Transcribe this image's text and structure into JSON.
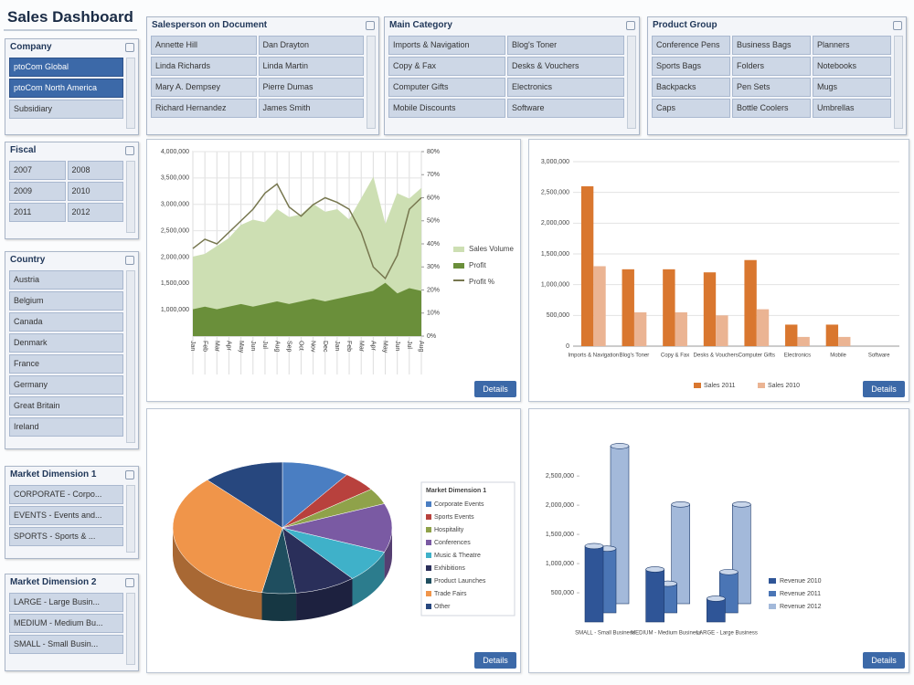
{
  "header": {
    "title": "Sales Dashboard"
  },
  "slicers": [
    {
      "title": "Company",
      "items": [
        "ptoCom Global",
        "ptoCom North America",
        "Subsidiary"
      ],
      "selected": [
        0,
        1
      ]
    },
    {
      "title": "Fiscal",
      "items": [
        "2007",
        "2008",
        "2009",
        "2010",
        "2011",
        "2012"
      ],
      "selected": []
    },
    {
      "title": "Country",
      "items": [
        "Austria",
        "Belgium",
        "Canada",
        "Denmark",
        "France",
        "Germany",
        "Great Britain",
        "Ireland"
      ],
      "selected": []
    },
    {
      "title": "Market Dimension 1",
      "items": [
        "CORPORATE - Corpo...",
        "EVENTS - Events and...",
        "SPORTS - Sports & ..."
      ],
      "selected": []
    },
    {
      "title": "Market Dimension 2",
      "items": [
        "LARGE - Large Busin...",
        "MEDIUM - Medium Bu...",
        "SMALL - Small Busin..."
      ],
      "selected": []
    },
    {
      "title": "Salesperson on Document",
      "items": [
        "Annette Hill",
        "Dan Drayton",
        "Linda Richards",
        "Linda Martin",
        "Mary A. Dempsey",
        "Pierre Dumas",
        "Richard Hernandez",
        "James Smith"
      ],
      "selected": []
    },
    {
      "title": "Main Category",
      "items": [
        "Imports & Navigation",
        "Blog's Toner",
        "Copy & Fax",
        "Desks & Vouchers",
        "Computer Gifts",
        "Electronics",
        "Mobile Discounts",
        "Software"
      ],
      "selected": []
    },
    {
      "title": "Product Group",
      "items": [
        "Conference Pens",
        "Business Bags",
        "Planners",
        "Sports Bags",
        "Folders",
        "Notebooks",
        "Backpacks",
        "Pen Sets",
        "Mugs",
        "Caps",
        "Bottle Coolers",
        "Umbrellas"
      ],
      "selected": []
    }
  ],
  "charts": [
    {
      "type": "area",
      "categories": [
        "Jan",
        "Feb",
        "Mar",
        "Apr",
        "May",
        "Jun",
        "Jul",
        "Aug",
        "Sep",
        "Oct",
        "Nov",
        "Dec",
        "Jan",
        "Feb",
        "Mar",
        "Apr",
        "May",
        "Jun",
        "Jul",
        "Aug"
      ],
      "series": [
        {
          "name": "Sales Volume",
          "kind": "area",
          "color": "#cddfb3",
          "values": [
            2000000,
            2050000,
            2200000,
            2350000,
            2600000,
            2700000,
            2650000,
            2900000,
            2750000,
            2800000,
            3000000,
            2850000,
            2900000,
            2700000,
            3100000,
            3500000,
            2600000,
            3200000,
            3100000,
            3300000
          ]
        },
        {
          "name": "Profit",
          "kind": "area",
          "color": "#6a8f3a",
          "values": [
            1000000,
            1050000,
            1000000,
            1050000,
            1100000,
            1050000,
            1100000,
            1150000,
            1100000,
            1150000,
            1200000,
            1150000,
            1200000,
            1250000,
            1300000,
            1350000,
            1500000,
            1300000,
            1400000,
            1350000
          ]
        },
        {
          "name": "Profit %",
          "kind": "line",
          "axis": "y2",
          "color": "#77774f",
          "values": [
            38,
            42,
            40,
            45,
            50,
            55,
            62,
            66,
            56,
            52,
            57,
            60,
            58,
            55,
            45,
            30,
            25,
            35,
            55,
            60
          ]
        }
      ],
      "ylim": [
        500000,
        4000000
      ],
      "yticks": [
        {
          "value": 1000000,
          "label": "1,000,000"
        },
        {
          "value": 1500000,
          "label": "1,500,000"
        },
        {
          "value": 2000000,
          "label": "2,000,000"
        },
        {
          "value": 2500000,
          "label": "2,500,000"
        },
        {
          "value": 3000000,
          "label": "3,000,000"
        },
        {
          "value": 3500000,
          "label": "3,500,000"
        },
        {
          "value": 4000000,
          "label": "4,000,000"
        }
      ],
      "y2lim": [
        0,
        80
      ],
      "y2ticks": [
        {
          "value": 0,
          "label": "0%"
        },
        {
          "value": 10,
          "label": "10%"
        },
        {
          "value": 20,
          "label": "20%"
        },
        {
          "value": 30,
          "label": "30%"
        },
        {
          "value": 40,
          "label": "40%"
        },
        {
          "value": 50,
          "label": "50%"
        },
        {
          "value": 60,
          "label": "60%"
        },
        {
          "value": 70,
          "label": "70%"
        },
        {
          "value": 80,
          "label": "80%"
        }
      ],
      "grid": true,
      "button": "Details"
    },
    {
      "type": "bar",
      "categories": [
        "Imports & Navigation",
        "Blog's Toner",
        "Copy & Fax",
        "Desks & Vouchers",
        "Computer Gifts",
        "Electronics",
        "Mobile",
        "Software"
      ],
      "series": [
        {
          "name": "Sales 2011",
          "color": "#d9772f",
          "values": [
            2600000,
            1250000,
            1250000,
            1200000,
            1400000,
            350000,
            350000,
            0
          ]
        },
        {
          "name": "Sales 2010",
          "color": "#ebb493",
          "values": [
            1300000,
            550000,
            550000,
            500000,
            600000,
            150000,
            150000,
            0
          ]
        }
      ],
      "ylim": [
        0,
        3000000
      ],
      "yticks": [
        0,
        {
          "value": 500000,
          "label": "500,000"
        },
        {
          "value": 1000000,
          "label": "1,000,000"
        },
        {
          "value": 1500000,
          "label": "1,500,000"
        },
        {
          "value": 2000000,
          "label": "2,000,000"
        },
        {
          "value": 2500000,
          "label": "2,500,000"
        },
        {
          "value": 3000000,
          "label": "3,000,000"
        }
      ],
      "grid": true,
      "button": "Details"
    },
    {
      "type": "pie",
      "legend_title": "Market Dimension 1",
      "categories": [
        "Corporate Events",
        "Sports Events",
        "Hospitality",
        "Conferences",
        "Music & Theatre",
        "Exhibitions",
        "Product Launches",
        "Trade Fairs",
        "Other"
      ],
      "values": [
        10,
        5,
        4,
        12,
        8,
        9,
        5,
        35,
        12
      ],
      "colors": [
        "#4a7ec2",
        "#b8413d",
        "#8fa24a",
        "#7a5aa3",
        "#3fb1c9",
        "#2a2f5a",
        "#1f4e5f",
        "#f0954a",
        "#27477e"
      ],
      "button": "Details"
    },
    {
      "type": "column3d",
      "categories": [
        "SMALL - Small Business",
        "MEDIUM - Medium Business",
        "LARGE - Large Business"
      ],
      "series": [
        {
          "name": "Revenue 2010",
          "color": "#2f5597",
          "values": [
            1300000,
            900000,
            400000
          ]
        },
        {
          "name": "Revenue 2011",
          "color": "#4a75b5",
          "values": [
            1100000,
            500000,
            700000
          ]
        },
        {
          "name": "Revenue 2012",
          "color": "#a3b9da",
          "values": [
            2700000,
            1700000,
            1700000
          ]
        }
      ],
      "ylim": [
        0,
        2800000
      ],
      "yticks": [
        {
          "value": 500000,
          "label": "500,000"
        },
        {
          "value": 1000000,
          "label": "1,000,000"
        },
        {
          "value": 1500000,
          "label": "1,500,000"
        },
        {
          "value": 2000000,
          "label": "2,000,000"
        },
        {
          "value": 2500000,
          "label": "2,500,000"
        }
      ],
      "button": "Details"
    }
  ]
}
